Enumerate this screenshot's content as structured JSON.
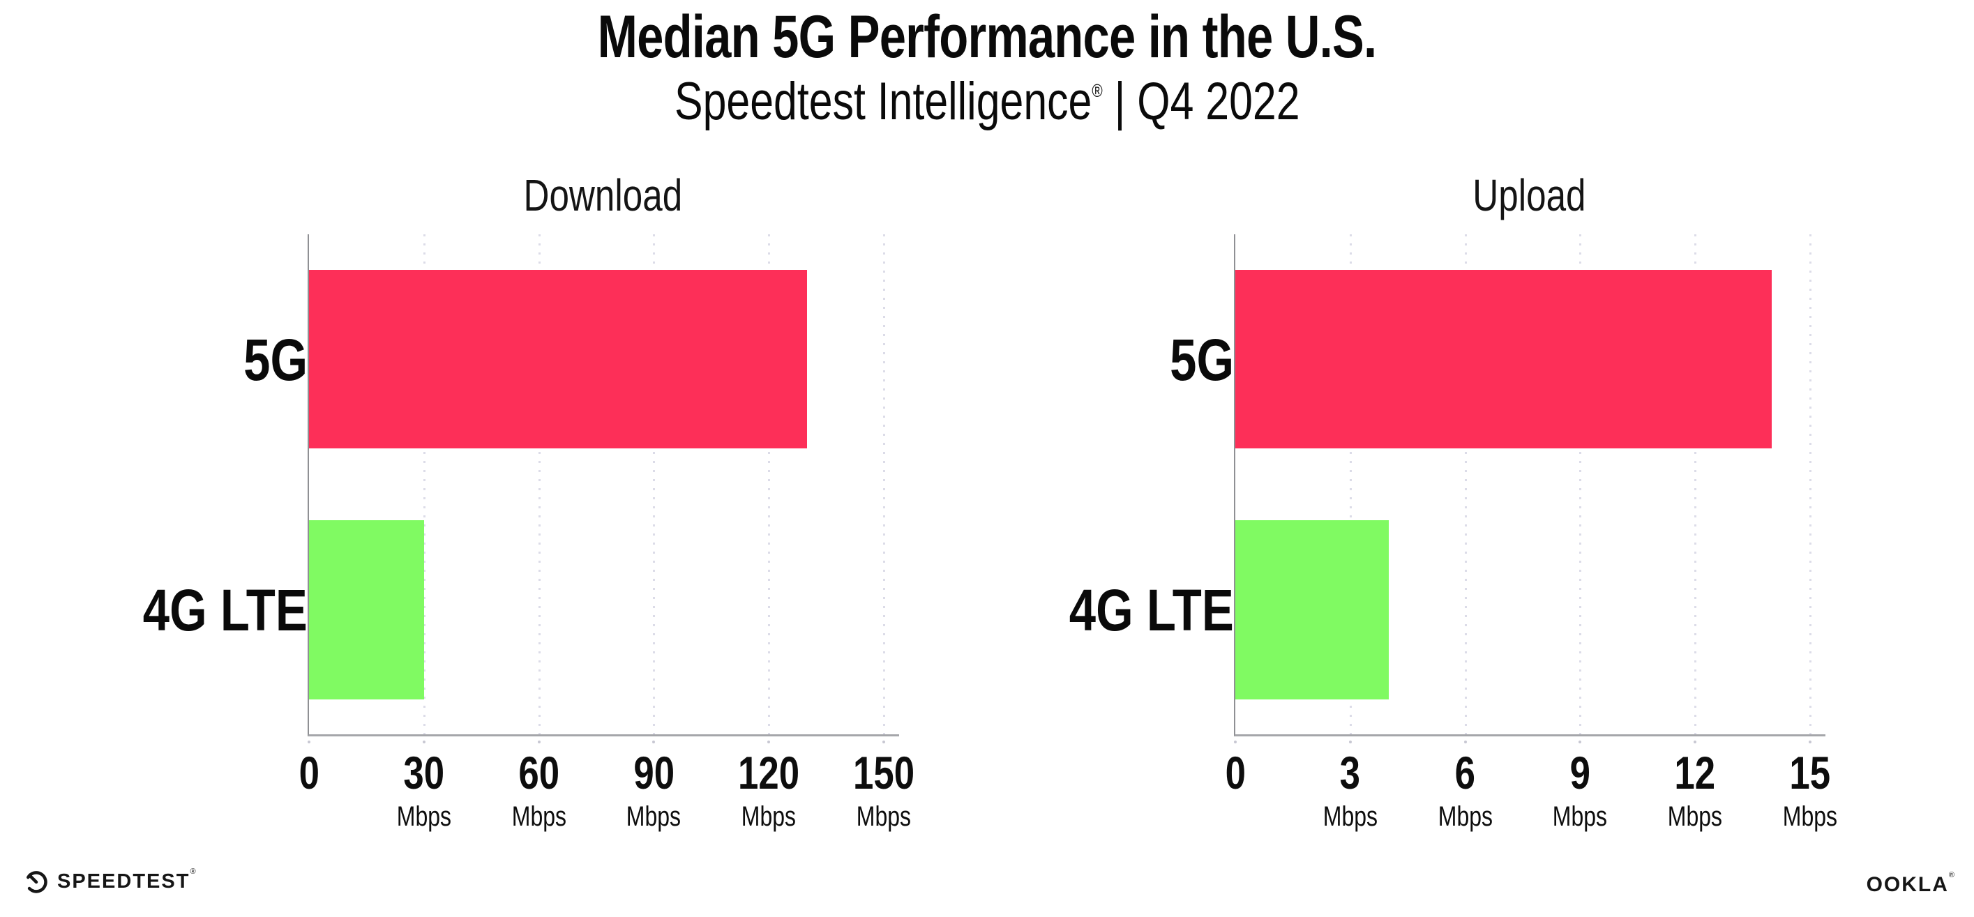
{
  "header": {
    "title": "Median 5G Performance in the U.S.",
    "subtitle_product": "Speedtest Intelligence",
    "subtitle_reg": "®",
    "subtitle_rest": " | Q4 2022"
  },
  "chart_data": [
    {
      "type": "bar",
      "orientation": "horizontal",
      "title": "Download",
      "categories": [
        "5G",
        "4G LTE"
      ],
      "values": [
        130,
        30
      ],
      "unit": "Mbps",
      "xlim": [
        0,
        150
      ],
      "xticks": [
        "0",
        "30",
        "60",
        "90",
        "120",
        "150"
      ],
      "bar_colors": [
        "#fd2f58",
        "#80fa62"
      ],
      "grid": "dotted-vertical",
      "legend": "none"
    },
    {
      "type": "bar",
      "orientation": "horizontal",
      "title": "Upload",
      "categories": [
        "5G",
        "4G LTE"
      ],
      "values": [
        14,
        4
      ],
      "unit": "Mbps",
      "xlim": [
        0,
        15
      ],
      "xticks": [
        "0",
        "3",
        "6",
        "9",
        "12",
        "15"
      ],
      "bar_colors": [
        "#fd2f58",
        "#80fa62"
      ],
      "grid": "dotted-vertical",
      "legend": "none"
    }
  ],
  "footer": {
    "speedtest_label": "SPEEDTEST",
    "speedtest_reg": "®",
    "ookla_label": "OOKLA",
    "ookla_reg": "®"
  },
  "colors": {
    "bar_5g": "#fd2f58",
    "bar_4g_lte": "#80fa62",
    "grid_dot": "#dcdce8",
    "axis_left": "#8f9094",
    "axis_bottom": "#a5a6aa",
    "text": "#0a0a0a"
  }
}
